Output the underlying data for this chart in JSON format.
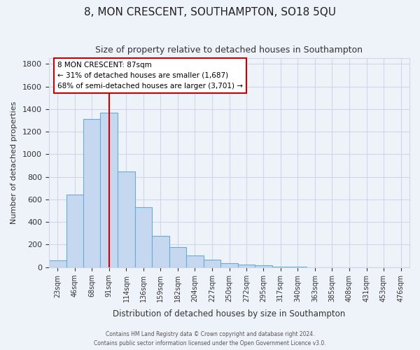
{
  "title": "8, MON CRESCENT, SOUTHAMPTON, SO18 5QU",
  "subtitle": "Size of property relative to detached houses in Southampton",
  "xlabel": "Distribution of detached houses by size in Southampton",
  "ylabel": "Number of detached properties",
  "bar_color": "#c5d8f0",
  "bar_edge_color": "#6aaad4",
  "bg_color": "#eef2f9",
  "grid_color": "#d0d8e8",
  "annotation_box_color": "#ffffff",
  "annotation_box_edge": "#cc0000",
  "vline_color": "#cc0000",
  "vline_x": 91,
  "categories": [
    "23sqm",
    "46sqm",
    "68sqm",
    "91sqm",
    "114sqm",
    "136sqm",
    "159sqm",
    "182sqm",
    "204sqm",
    "227sqm",
    "250sqm",
    "272sqm",
    "295sqm",
    "317sqm",
    "340sqm",
    "363sqm",
    "385sqm",
    "408sqm",
    "431sqm",
    "453sqm",
    "476sqm"
  ],
  "bin_edges": [
    11.5,
    34.5,
    57,
    79.5,
    102.5,
    125,
    147.5,
    170.5,
    193,
    215.5,
    238.5,
    261,
    283.5,
    306,
    328.5,
    351.5,
    374,
    396.5,
    419.5,
    442,
    464.5,
    487.5
  ],
  "values": [
    60,
    640,
    1310,
    1370,
    850,
    530,
    280,
    180,
    105,
    65,
    35,
    22,
    15,
    5,
    3,
    1,
    1,
    0,
    0,
    0,
    0
  ],
  "ylim": [
    0,
    1850
  ],
  "yticks": [
    0,
    200,
    400,
    600,
    800,
    1000,
    1200,
    1400,
    1600,
    1800
  ],
  "annotation_title": "8 MON CRESCENT: 87sqm",
  "annotation_line1": "← 31% of detached houses are smaller (1,687)",
  "annotation_line2": "68% of semi-detached houses are larger (3,701) →",
  "footer1": "Contains HM Land Registry data © Crown copyright and database right 2024.",
  "footer2": "Contains public sector information licensed under the Open Government Licence v3.0."
}
